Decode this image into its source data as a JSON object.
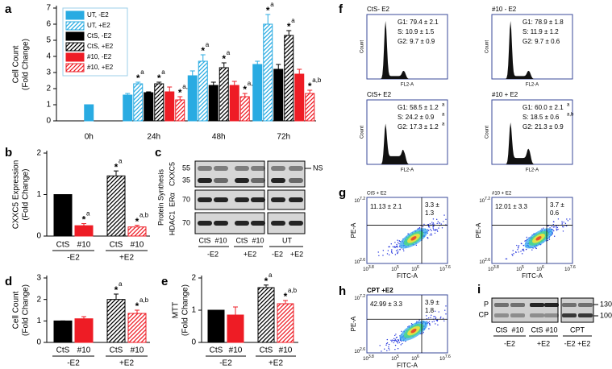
{
  "chart_data": [
    {
      "type": "bar",
      "label": "a",
      "ylabel": [
        "Cell Count",
        "(Fold Change)"
      ],
      "categories": [
        "0h",
        "24h",
        "48h",
        "72h"
      ],
      "ylim": [
        0,
        7
      ],
      "yticks": [
        0,
        1,
        2,
        3,
        4,
        5,
        6,
        7
      ],
      "legend": "top-left",
      "series": [
        {
          "name": "UT, -E2",
          "color": "#29abe2",
          "hatched": false,
          "values": [
            1.0,
            1.6,
            2.8,
            3.5
          ],
          "errors": [
            0,
            0.1,
            0.3,
            0.2
          ]
        },
        {
          "name": "UT, +E2",
          "color": "#29abe2",
          "hatched": true,
          "values": [
            null,
            2.3,
            3.7,
            6.0
          ],
          "errors": [
            null,
            0.1,
            0.4,
            0.6
          ],
          "stars": [
            null,
            "*",
            "*",
            "*"
          ],
          "letters": [
            null,
            "a",
            "a",
            "a"
          ]
        },
        {
          "name": "CtS, -E2",
          "color": "#000000",
          "hatched": false,
          "values": [
            null,
            1.75,
            2.2,
            3.2
          ],
          "errors": [
            null,
            0.05,
            0.2,
            0.3
          ]
        },
        {
          "name": "CtS, +E2",
          "color": "#000000",
          "hatched": true,
          "values": [
            null,
            2.3,
            3.3,
            5.3
          ],
          "errors": [
            null,
            0.1,
            0.3,
            0.3
          ],
          "stars": [
            null,
            "*",
            "*",
            "*"
          ],
          "letters": [
            null,
            "a",
            "a",
            "a"
          ]
        },
        {
          "name": "#10, -E2",
          "color": "#ee1c25",
          "hatched": false,
          "values": [
            null,
            1.8,
            2.2,
            2.9
          ],
          "errors": [
            null,
            0.3,
            0.25,
            0.3
          ]
        },
        {
          "name": "#10, +E2",
          "color": "#ee1c25",
          "hatched": true,
          "values": [
            null,
            1.3,
            1.5,
            1.7
          ],
          "errors": [
            null,
            0.2,
            0.2,
            0.2
          ],
          "stars": [
            null,
            "*",
            "*",
            "*"
          ],
          "letters": [
            null,
            "a,b",
            "a,b",
            "a,b"
          ]
        }
      ]
    },
    {
      "type": "bar",
      "label": "b",
      "ylabel": [
        "CXXC5 Expression",
        "(Fold Change)"
      ],
      "categories": [
        "CtS",
        "#10",
        "CtS",
        "#10"
      ],
      "groups": [
        "-E2",
        "+E2"
      ],
      "values": [
        1.0,
        0.25,
        1.45,
        0.22
      ],
      "errors": [
        0,
        0.05,
        0.12,
        0.04
      ],
      "colors": [
        "#000000",
        "#ee1c25",
        "#000000",
        "#ee1c25"
      ],
      "hatched": [
        false,
        false,
        true,
        true
      ],
      "stars": [
        null,
        "*",
        "*",
        "*"
      ],
      "letters": [
        null,
        "a",
        "a",
        "a,b"
      ],
      "ylim": [
        0,
        2
      ],
      "yticks": [
        0,
        1,
        2
      ]
    },
    {
      "type": "bar",
      "label": "d",
      "ylabel": [
        "Cell Count",
        "(Fold Change)"
      ],
      "categories": [
        "CtS",
        "#10",
        "CtS",
        "#10"
      ],
      "groups": [
        "-E2",
        "+E2"
      ],
      "values": [
        1.0,
        1.1,
        2.0,
        1.35
      ],
      "errors": [
        0,
        0.1,
        0.25,
        0.15
      ],
      "colors": [
        "#000000",
        "#ee1c25",
        "#000000",
        "#ee1c25"
      ],
      "hatched": [
        false,
        false,
        true,
        true
      ],
      "stars": [
        null,
        null,
        "*",
        "*"
      ],
      "letters": [
        null,
        null,
        "a",
        "a,b"
      ],
      "ylim": [
        0,
        3
      ],
      "yticks": [
        0,
        1,
        2,
        3
      ]
    },
    {
      "type": "bar",
      "label": "e",
      "ylabel": [
        "MTT",
        "(Fold Change)"
      ],
      "categories": [
        "CtS",
        "#10",
        "CtS",
        "#10"
      ],
      "groups": [
        "-E2",
        "+E2"
      ],
      "values": [
        1.0,
        0.85,
        1.7,
        1.2
      ],
      "errors": [
        0,
        0.25,
        0.08,
        0.1
      ],
      "colors": [
        "#000000",
        "#ee1c25",
        "#000000",
        "#ee1c25"
      ],
      "hatched": [
        false,
        false,
        true,
        true
      ],
      "stars": [
        null,
        null,
        "*",
        "*"
      ],
      "letters": [
        null,
        null,
        "a",
        "a,b"
      ],
      "ylim": [
        0,
        2
      ],
      "yticks": [
        0,
        1,
        2
      ]
    }
  ],
  "blot_c": {
    "label": "c",
    "section": "Protein Synthesis",
    "rows": [
      {
        "name": "CXXC5",
        "mw": [
          "55",
          "35"
        ]
      },
      {
        "name": "ERα",
        "mw": [
          "70"
        ]
      },
      {
        "name": "HDAC1",
        "mw": [
          "70"
        ]
      }
    ],
    "ns": "NS",
    "lanes": [
      "CtS",
      "#10",
      "CtS",
      "#10",
      "UT"
    ],
    "groups": [
      "-E2",
      "+E2",
      "-E2",
      "+E2"
    ]
  },
  "flow_f": {
    "label": "f",
    "ylabel": "Count",
    "xlabel": "FL2-A",
    "plots": [
      {
        "title": "CtS- E2",
        "stats": [
          {
            "text": "G1: 79.4 ± 2.1"
          },
          {
            "text": "S: 10.9 ± 1.5"
          },
          {
            "text": "G2: 9.7 ± 0.9"
          }
        ]
      },
      {
        "title": "#10 - E2",
        "stats": [
          {
            "text": "G1: 78.9 ± 1.8"
          },
          {
            "text": "S: 11.9 ± 1.2"
          },
          {
            "text": "G2: 9.7 ± 0.6"
          }
        ]
      },
      {
        "title": "CtS+ E2",
        "stats": [
          {
            "text": "G1: 58.5 ± 1.2",
            "sup": "a"
          },
          {
            "text": "S: 24.2 ± 0.9",
            "sup": "a"
          },
          {
            "text": "G2: 17.3 ± 1.2",
            "sup": "a"
          }
        ]
      },
      {
        "title": "#10 + E2",
        "stats": [
          {
            "text": "G1: 60.0 ± 2.1",
            "sup": "a"
          },
          {
            "text": "S: 18.5 ± 0.6",
            "sup": "a,b"
          },
          {
            "text": "G2: 21.3 ± 0.9"
          }
        ]
      }
    ]
  },
  "flow_g": {
    "label": "g",
    "ylabel": "PE-A",
    "xlabel": "FITC-A",
    "base": "10",
    "yticks": [
      "2.6",
      "7.2"
    ],
    "xticks": [
      "3.8",
      "5",
      "6",
      "7.6"
    ],
    "plots": [
      {
        "title": "CtS + E2",
        "upper_left": "11.13 ± 2.1",
        "upper_right": [
          "3.3 ±",
          "1.3"
        ]
      },
      {
        "title": "#10 + E2",
        "upper_left": "12.01 ± 3.3",
        "upper_right": [
          "3.7 ±",
          "0.6"
        ]
      }
    ]
  },
  "flow_h": {
    "label": "h",
    "ylabel": "PE-A",
    "xlabel": "FITC-A",
    "base": "10",
    "yticks": [
      "2.6",
      "7.2"
    ],
    "xticks": [
      "3.8",
      "5",
      "6",
      "7.6"
    ],
    "plots": [
      {
        "title": "CPT +E2",
        "upper_left": "42.99 ± 3.3",
        "upper_right": [
          "3.9 ±",
          "1.8"
        ]
      }
    ]
  },
  "blot_i": {
    "label": "i",
    "bands": [
      "P",
      "CP"
    ],
    "mw": [
      "130",
      "100"
    ],
    "lanes": [
      "CtS",
      "#10",
      "CtS",
      "#10",
      "CPT"
    ],
    "groups": [
      "-E2",
      "+E2",
      "-E2 +E2"
    ]
  }
}
